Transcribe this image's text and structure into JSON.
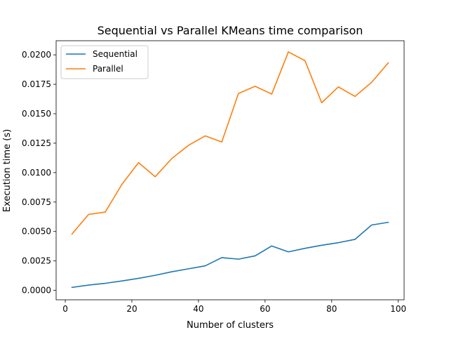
{
  "chart_data": {
    "type": "line",
    "title": "Sequential vs Parallel KMeans time comparison",
    "xlabel": "Number of clusters",
    "ylabel": "Execution time (s)",
    "xlim": [
      -2.75,
      101.75
    ],
    "ylim": [
      -0.0008,
      0.0212
    ],
    "xticks": [
      0,
      20,
      40,
      60,
      80,
      100
    ],
    "xtick_labels": [
      "0",
      "20",
      "40",
      "60",
      "80",
      "100"
    ],
    "yticks": [
      0.0,
      0.0025,
      0.005,
      0.0075,
      0.01,
      0.0125,
      0.015,
      0.0175,
      0.02
    ],
    "ytick_labels": [
      "0.0000",
      "0.0025",
      "0.0050",
      "0.0075",
      "0.0100",
      "0.0125",
      "0.0150",
      "0.0175",
      "0.0200"
    ],
    "grid": false,
    "legend_position": "top-left",
    "x": [
      2,
      7,
      12,
      17,
      22,
      27,
      32,
      37,
      42,
      47,
      52,
      57,
      62,
      67,
      72,
      77,
      82,
      87,
      92,
      97
    ],
    "series": [
      {
        "name": "Sequential",
        "color": "#1f77b4",
        "values": [
          0.00025,
          0.00045,
          0.0006,
          0.0008,
          0.00102,
          0.00128,
          0.00158,
          0.00183,
          0.00208,
          0.00278,
          0.00265,
          0.00293,
          0.00377,
          0.00327,
          0.00357,
          0.00383,
          0.00405,
          0.00433,
          0.00555,
          0.00578
        ]
      },
      {
        "name": "Parallel",
        "color": "#ff7f0e",
        "values": [
          0.00478,
          0.00645,
          0.00665,
          0.009,
          0.01085,
          0.00965,
          0.0112,
          0.01232,
          0.01312,
          0.0126,
          0.01672,
          0.01733,
          0.01667,
          0.02025,
          0.0195,
          0.01593,
          0.01728,
          0.01647,
          0.01767,
          0.01932
        ]
      }
    ]
  }
}
